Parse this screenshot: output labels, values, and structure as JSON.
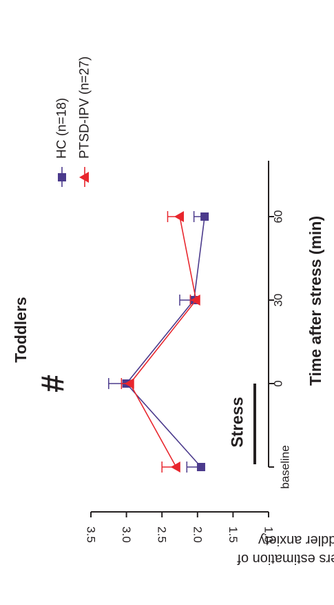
{
  "chart_data": {
    "type": "line",
    "title": "Toddlers",
    "xlabel": "Time after stress (min)",
    "ylabel": [
      "Mothers estimation of",
      "toddler anxiety"
    ],
    "categories": [
      "baseline",
      "0",
      "30",
      "60"
    ],
    "x": [
      -30,
      0,
      30,
      60
    ],
    "ylim": [
      1.0,
      3.5
    ],
    "yticks": [
      "1.0",
      "1.5",
      "2.0",
      "2.5",
      "3.0",
      "3.5"
    ],
    "series": [
      {
        "name": "HC (n=18)",
        "color": "#4b3a8c",
        "marker": "square",
        "values": [
          1.95,
          3.0,
          2.05,
          1.9
        ],
        "errors": [
          0.2,
          0.25,
          0.2,
          0.15
        ]
      },
      {
        "name": "PTSD-IPV (n=27)",
        "color": "#e8262d",
        "marker": "triangle",
        "values": [
          2.3,
          2.95,
          2.02,
          2.25
        ],
        "errors": [
          0.2,
          0.12,
          0.08,
          0.17
        ]
      }
    ],
    "annotations": {
      "significance": "#",
      "stress": "Stress"
    },
    "legend_position": "top-right",
    "grid": false,
    "rotated": true
  }
}
